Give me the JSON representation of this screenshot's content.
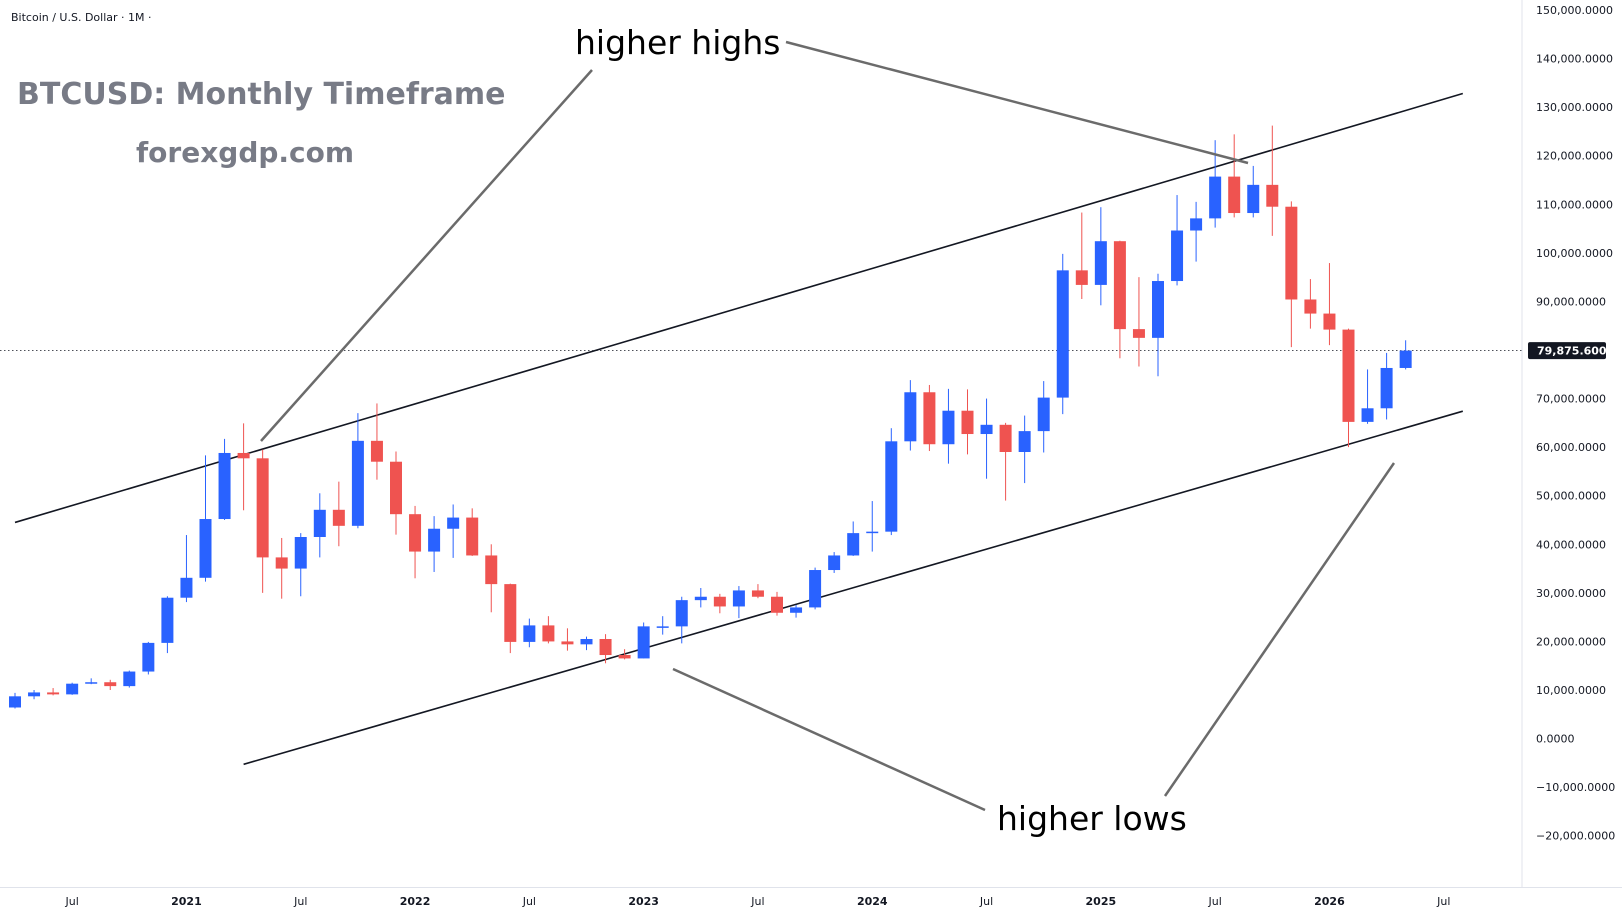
{
  "header": {
    "symbol": "Bitcoin / U.S. Dollar · 1M ·"
  },
  "watermark": {
    "title": "BTCUSD: Monthly Timeframe",
    "site": "forexgdp.com"
  },
  "annotations": {
    "highs": "higher highs",
    "lows": "higher lows"
  },
  "price_label": "79,875.6000",
  "colors": {
    "up": "#2962ff",
    "down": "#ef5350",
    "line": "#131722",
    "pointer": "#6b6b6b",
    "label_bg": "#131722"
  },
  "chart_data": {
    "type": "candlestick",
    "timeframe": "1M",
    "ylim": [
      -25000,
      150000
    ],
    "x_range": [
      "2020-04",
      "2026-08"
    ],
    "y_ticks": [
      150000,
      140000,
      130000,
      120000,
      110000,
      100000,
      90000,
      80000,
      70000,
      60000,
      50000,
      40000,
      30000,
      20000,
      10000,
      0,
      -10000,
      -20000
    ],
    "y_tick_labels": [
      "150,000.0000",
      "140,000.0000",
      "130,000.0000",
      "120,000.0000",
      "110,000.0000",
      "100,000.0000",
      "90,000.0000",
      "80,000.0000",
      "70,000.0000",
      "60,000.0000",
      "50,000.0000",
      "40,000.0000",
      "30,000.0000",
      "20,000.0000",
      "10,000.0000",
      "0.0000",
      "−10,000.0000",
      "−20,000.0000"
    ],
    "x_ticks": [
      {
        "label": "Jul",
        "date": "2020-07",
        "bold": false
      },
      {
        "label": "2021",
        "date": "2021-01",
        "bold": true
      },
      {
        "label": "Jul",
        "date": "2021-07",
        "bold": false
      },
      {
        "label": "2022",
        "date": "2022-01",
        "bold": true
      },
      {
        "label": "Jul",
        "date": "2022-07",
        "bold": false
      },
      {
        "label": "2023",
        "date": "2023-01",
        "bold": true
      },
      {
        "label": "Jul",
        "date": "2023-07",
        "bold": false
      },
      {
        "label": "2024",
        "date": "2024-01",
        "bold": true
      },
      {
        "label": "Jul",
        "date": "2024-07",
        "bold": false
      },
      {
        "label": "2025",
        "date": "2025-01",
        "bold": true
      },
      {
        "label": "Jul",
        "date": "2025-07",
        "bold": false
      },
      {
        "label": "2026",
        "date": "2026-01",
        "bold": true
      },
      {
        "label": "Jul",
        "date": "2026-07",
        "bold": false
      }
    ],
    "candles": [
      {
        "d": "2020-04",
        "o": 6400,
        "h": 9400,
        "l": 6200,
        "c": 8700
      },
      {
        "d": "2020-05",
        "o": 8700,
        "h": 10000,
        "l": 8100,
        "c": 9500
      },
      {
        "d": "2020-06",
        "o": 9500,
        "h": 10400,
        "l": 8900,
        "c": 9100
      },
      {
        "d": "2020-07",
        "o": 9100,
        "h": 11500,
        "l": 9000,
        "c": 11300
      },
      {
        "d": "2020-08",
        "o": 11300,
        "h": 12400,
        "l": 11200,
        "c": 11600
      },
      {
        "d": "2020-09",
        "o": 11600,
        "h": 12100,
        "l": 10000,
        "c": 10800
      },
      {
        "d": "2020-10",
        "o": 10800,
        "h": 14000,
        "l": 10500,
        "c": 13800
      },
      {
        "d": "2020-11",
        "o": 13800,
        "h": 19900,
        "l": 13200,
        "c": 19700
      },
      {
        "d": "2020-12",
        "o": 19700,
        "h": 29300,
        "l": 17600,
        "c": 29000
      },
      {
        "d": "2021-01",
        "o": 29000,
        "h": 41900,
        "l": 28100,
        "c": 33100
      },
      {
        "d": "2021-02",
        "o": 33100,
        "h": 58300,
        "l": 32300,
        "c": 45200
      },
      {
        "d": "2021-03",
        "o": 45200,
        "h": 61700,
        "l": 45000,
        "c": 58800
      },
      {
        "d": "2021-04",
        "o": 58800,
        "h": 64900,
        "l": 47000,
        "c": 57700
      },
      {
        "d": "2021-05",
        "o": 57700,
        "h": 59500,
        "l": 30000,
        "c": 37300
      },
      {
        "d": "2021-06",
        "o": 37300,
        "h": 41300,
        "l": 28800,
        "c": 35000
      },
      {
        "d": "2021-07",
        "o": 35000,
        "h": 42300,
        "l": 29300,
        "c": 41500
      },
      {
        "d": "2021-08",
        "o": 41500,
        "h": 50500,
        "l": 37300,
        "c": 47100
      },
      {
        "d": "2021-09",
        "o": 47100,
        "h": 52900,
        "l": 39600,
        "c": 43800
      },
      {
        "d": "2021-10",
        "o": 43800,
        "h": 67000,
        "l": 43300,
        "c": 61300
      },
      {
        "d": "2021-11",
        "o": 61300,
        "h": 69000,
        "l": 53300,
        "c": 57000
      },
      {
        "d": "2021-12",
        "o": 57000,
        "h": 59100,
        "l": 42000,
        "c": 46200
      },
      {
        "d": "2022-01",
        "o": 46200,
        "h": 47900,
        "l": 33000,
        "c": 38500
      },
      {
        "d": "2022-02",
        "o": 38500,
        "h": 45800,
        "l": 34300,
        "c": 43200
      },
      {
        "d": "2022-03",
        "o": 43200,
        "h": 48200,
        "l": 37200,
        "c": 45500
      },
      {
        "d": "2022-04",
        "o": 45500,
        "h": 47400,
        "l": 37600,
        "c": 37700
      },
      {
        "d": "2022-05",
        "o": 37700,
        "h": 40000,
        "l": 26000,
        "c": 31800
      },
      {
        "d": "2022-06",
        "o": 31800,
        "h": 31900,
        "l": 17600,
        "c": 19900
      },
      {
        "d": "2022-07",
        "o": 19900,
        "h": 24700,
        "l": 18800,
        "c": 23300
      },
      {
        "d": "2022-08",
        "o": 23300,
        "h": 25200,
        "l": 19600,
        "c": 20000
      },
      {
        "d": "2022-09",
        "o": 20000,
        "h": 22700,
        "l": 18100,
        "c": 19400
      },
      {
        "d": "2022-10",
        "o": 19400,
        "h": 21000,
        "l": 18200,
        "c": 20500
      },
      {
        "d": "2022-11",
        "o": 20500,
        "h": 21500,
        "l": 15500,
        "c": 17200
      },
      {
        "d": "2022-12",
        "o": 17200,
        "h": 18400,
        "l": 16300,
        "c": 16500
      },
      {
        "d": "2023-01",
        "o": 16500,
        "h": 23900,
        "l": 16500,
        "c": 23100
      },
      {
        "d": "2023-02",
        "o": 23100,
        "h": 25200,
        "l": 21400,
        "c": 23100
      },
      {
        "d": "2023-03",
        "o": 23100,
        "h": 29200,
        "l": 19600,
        "c": 28500
      },
      {
        "d": "2023-04",
        "o": 28500,
        "h": 31000,
        "l": 27000,
        "c": 29200
      },
      {
        "d": "2023-05",
        "o": 29200,
        "h": 29800,
        "l": 25800,
        "c": 27200
      },
      {
        "d": "2023-06",
        "o": 27200,
        "h": 31400,
        "l": 24800,
        "c": 30500
      },
      {
        "d": "2023-07",
        "o": 30500,
        "h": 31800,
        "l": 28900,
        "c": 29200
      },
      {
        "d": "2023-08",
        "o": 29200,
        "h": 30200,
        "l": 25300,
        "c": 25900
      },
      {
        "d": "2023-09",
        "o": 25900,
        "h": 27500,
        "l": 24900,
        "c": 27000
      },
      {
        "d": "2023-10",
        "o": 27000,
        "h": 35200,
        "l": 26600,
        "c": 34700
      },
      {
        "d": "2023-11",
        "o": 34700,
        "h": 38400,
        "l": 34100,
        "c": 37700
      },
      {
        "d": "2023-12",
        "o": 37700,
        "h": 44700,
        "l": 37600,
        "c": 42300
      },
      {
        "d": "2024-01",
        "o": 42300,
        "h": 48900,
        "l": 38500,
        "c": 42600
      },
      {
        "d": "2024-02",
        "o": 42600,
        "h": 63900,
        "l": 41900,
        "c": 61200
      },
      {
        "d": "2024-03",
        "o": 61200,
        "h": 73800,
        "l": 59300,
        "c": 71300
      },
      {
        "d": "2024-04",
        "o": 71300,
        "h": 72800,
        "l": 59200,
        "c": 60600
      },
      {
        "d": "2024-05",
        "o": 60600,
        "h": 72000,
        "l": 56600,
        "c": 67500
      },
      {
        "d": "2024-06",
        "o": 67500,
        "h": 71900,
        "l": 58500,
        "c": 62700
      },
      {
        "d": "2024-07",
        "o": 62700,
        "h": 70000,
        "l": 53500,
        "c": 64600
      },
      {
        "d": "2024-08",
        "o": 64600,
        "h": 65000,
        "l": 49000,
        "c": 59000
      },
      {
        "d": "2024-09",
        "o": 59000,
        "h": 66500,
        "l": 52600,
        "c": 63300
      },
      {
        "d": "2024-10",
        "o": 63300,
        "h": 73600,
        "l": 58900,
        "c": 70200
      },
      {
        "d": "2024-11",
        "o": 70200,
        "h": 99800,
        "l": 66800,
        "c": 96400
      },
      {
        "d": "2024-12",
        "o": 96400,
        "h": 108300,
        "l": 90500,
        "c": 93400
      },
      {
        "d": "2025-01",
        "o": 93400,
        "h": 109400,
        "l": 89200,
        "c": 102400
      },
      {
        "d": "2025-02",
        "o": 102400,
        "h": 102500,
        "l": 78300,
        "c": 84300
      },
      {
        "d": "2025-03",
        "o": 84300,
        "h": 95000,
        "l": 76600,
        "c": 82500
      },
      {
        "d": "2025-04",
        "o": 82500,
        "h": 95700,
        "l": 74600,
        "c": 94200
      },
      {
        "d": "2025-05",
        "o": 94200,
        "h": 111900,
        "l": 93300,
        "c": 104600
      },
      {
        "d": "2025-06",
        "o": 104600,
        "h": 110500,
        "l": 98200,
        "c": 107100
      },
      {
        "d": "2025-07",
        "o": 107100,
        "h": 123200,
        "l": 105200,
        "c": 115700
      },
      {
        "d": "2025-08",
        "o": 115700,
        "h": 124400,
        "l": 107300,
        "c": 108200
      },
      {
        "d": "2025-09",
        "o": 108200,
        "h": 117900,
        "l": 107300,
        "c": 114000
      },
      {
        "d": "2025-10",
        "o": 114000,
        "h": 126200,
        "l": 103500,
        "c": 109500
      },
      {
        "d": "2025-11",
        "o": 109500,
        "h": 110600,
        "l": 80600,
        "c": 90400
      },
      {
        "d": "2025-12",
        "o": 90400,
        "h": 94600,
        "l": 84400,
        "c": 87500
      },
      {
        "d": "2026-01",
        "o": 87500,
        "h": 97900,
        "l": 81000,
        "c": 84200
      },
      {
        "d": "2026-02",
        "o": 84200,
        "h": 84400,
        "l": 60000,
        "c": 65200
      },
      {
        "d": "2026-03",
        "o": 65200,
        "h": 76000,
        "l": 64800,
        "c": 68000
      },
      {
        "d": "2026-04",
        "o": 68000,
        "h": 79400,
        "l": 65700,
        "c": 76300
      },
      {
        "d": "2026-05",
        "o": 76300,
        "h": 82000,
        "l": 76000,
        "c": 79876
      }
    ],
    "trendlines": [
      {
        "name": "upper",
        "from": {
          "d": "2020-04",
          "y": 44500
        },
        "to": {
          "d": "2026-08",
          "y": 132800
        }
      },
      {
        "name": "lower",
        "from": {
          "d": "2021-04",
          "y": -5300
        },
        "to": {
          "d": "2026-08",
          "y": 67400
        }
      }
    ],
    "current_price": 79875.6
  }
}
